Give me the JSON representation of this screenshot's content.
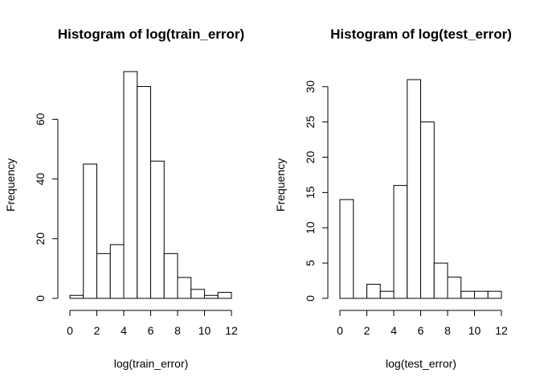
{
  "chart_data": [
    {
      "type": "bar",
      "title": "Histogram of log(train_error)",
      "xlabel": "log(train_error)",
      "ylabel": "Frequency",
      "bin_edges": [
        0,
        1,
        2,
        3,
        4,
        5,
        6,
        7,
        8,
        9,
        10,
        11,
        12
      ],
      "values": [
        1,
        45,
        15,
        18,
        76,
        71,
        46,
        15,
        7,
        3,
        1,
        2
      ],
      "xlim": [
        0,
        12
      ],
      "ylim": [
        0,
        76
      ],
      "x_ticks": [
        0,
        2,
        4,
        6,
        8,
        10,
        12
      ],
      "y_ticks": [
        0,
        20,
        40,
        60
      ],
      "grid": false
    },
    {
      "type": "bar",
      "title": "Histogram of log(test_error)",
      "xlabel": "log(test_error)",
      "ylabel": "Frequency",
      "bin_edges": [
        0,
        1,
        2,
        3,
        4,
        5,
        6,
        7,
        8,
        9,
        10,
        11,
        12
      ],
      "values": [
        14,
        0,
        2,
        1,
        16,
        31,
        25,
        5,
        3,
        1,
        1,
        1
      ],
      "xlim": [
        0,
        12
      ],
      "ylim": [
        0,
        31
      ],
      "x_ticks": [
        0,
        2,
        4,
        6,
        8,
        10,
        12
      ],
      "y_ticks": [
        0,
        5,
        10,
        15,
        20,
        25,
        30
      ],
      "grid": false
    }
  ]
}
